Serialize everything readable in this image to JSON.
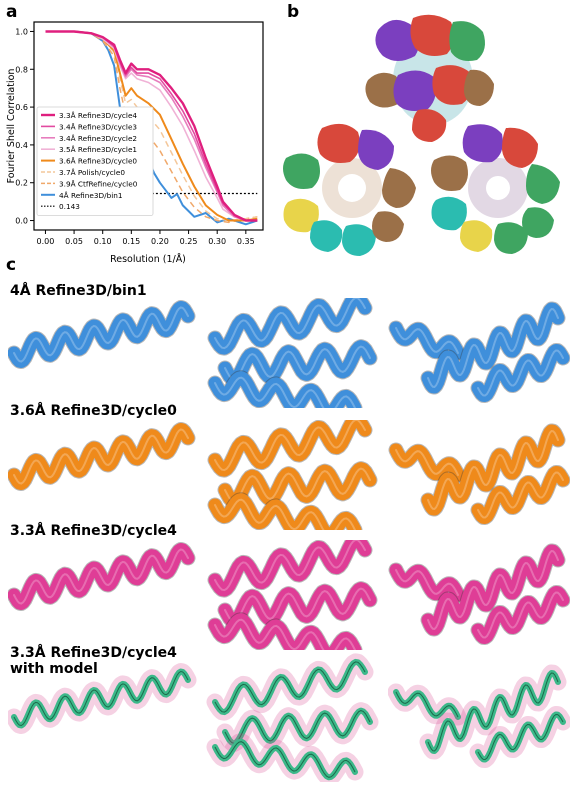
{
  "panels": {
    "a": "a",
    "b": "b",
    "c": "c"
  },
  "colors": {
    "blue": "#3f8fdb",
    "orange": "#ef8a1b",
    "pink": "#df3d96",
    "green": "#2db32d",
    "model": "#3cb88a"
  },
  "chart_data": {
    "type": "line",
    "xlabel": "Resolution (1/Å)",
    "ylabel": "Fourier Shell Correlation",
    "xlim": [
      -0.02,
      0.38
    ],
    "ylim": [
      -0.05,
      1.05
    ],
    "xticks": [
      "0.00",
      "0.05",
      "0.10",
      "0.15",
      "0.20",
      "0.25",
      "0.30",
      "0.35"
    ],
    "yticks": [
      "0.0",
      "0.2",
      "0.4",
      "0.6",
      "0.8",
      "1.0"
    ],
    "legend_position": "bottom-left",
    "series": [
      {
        "name": "3.3Å Refine3D/cycle4",
        "color": "#df1f7e",
        "width": 2.4,
        "dash": "",
        "x": [
          0,
          0.05,
          0.08,
          0.1,
          0.12,
          0.13,
          0.14,
          0.15,
          0.16,
          0.18,
          0.2,
          0.22,
          0.24,
          0.26,
          0.28,
          0.3,
          0.31,
          0.33,
          0.35,
          0.37
        ],
        "y": [
          1.0,
          1.0,
          0.99,
          0.97,
          0.93,
          0.85,
          0.78,
          0.83,
          0.8,
          0.8,
          0.77,
          0.7,
          0.62,
          0.5,
          0.33,
          0.18,
          0.1,
          0.03,
          0.0,
          0.0
        ]
      },
      {
        "name": "3.4Å Refine3D/cycle3",
        "color": "#e24aa0",
        "width": 1.6,
        "dash": "",
        "x": [
          0,
          0.05,
          0.08,
          0.1,
          0.12,
          0.13,
          0.14,
          0.15,
          0.16,
          0.18,
          0.2,
          0.22,
          0.24,
          0.26,
          0.28,
          0.3,
          0.31,
          0.33,
          0.35,
          0.37
        ],
        "y": [
          1.0,
          1.0,
          0.99,
          0.97,
          0.92,
          0.84,
          0.77,
          0.81,
          0.78,
          0.78,
          0.75,
          0.67,
          0.58,
          0.46,
          0.3,
          0.16,
          0.09,
          0.03,
          0.0,
          0.0
        ]
      },
      {
        "name": "3.4Å Refine3D/cycle2",
        "color": "#e77dbd",
        "width": 1.6,
        "dash": "",
        "x": [
          0,
          0.05,
          0.08,
          0.1,
          0.12,
          0.13,
          0.14,
          0.15,
          0.16,
          0.18,
          0.2,
          0.22,
          0.24,
          0.26,
          0.28,
          0.3,
          0.31,
          0.33,
          0.35,
          0.37
        ],
        "y": [
          1.0,
          1.0,
          0.99,
          0.97,
          0.92,
          0.83,
          0.76,
          0.8,
          0.77,
          0.76,
          0.73,
          0.65,
          0.55,
          0.43,
          0.28,
          0.15,
          0.08,
          0.02,
          0.0,
          0.0
        ]
      },
      {
        "name": "3.5Å Refine3D/cycle1",
        "color": "#f0b2d6",
        "width": 1.6,
        "dash": "",
        "x": [
          0,
          0.05,
          0.08,
          0.1,
          0.12,
          0.13,
          0.14,
          0.15,
          0.16,
          0.18,
          0.2,
          0.22,
          0.24,
          0.26,
          0.28,
          0.3,
          0.31,
          0.33,
          0.35,
          0.37
        ],
        "y": [
          1.0,
          1.0,
          0.99,
          0.96,
          0.91,
          0.82,
          0.75,
          0.78,
          0.75,
          0.73,
          0.69,
          0.6,
          0.5,
          0.37,
          0.23,
          0.12,
          0.06,
          0.02,
          0.0,
          0.0
        ]
      },
      {
        "name": "3.6Å Refine3D/cycle0",
        "color": "#ef8a1b",
        "width": 2.0,
        "dash": "",
        "x": [
          0,
          0.05,
          0.08,
          0.1,
          0.12,
          0.13,
          0.14,
          0.15,
          0.16,
          0.18,
          0.2,
          0.22,
          0.24,
          0.26,
          0.28,
          0.3,
          0.32,
          0.35,
          0.37
        ],
        "y": [
          1.0,
          1.0,
          0.99,
          0.96,
          0.9,
          0.78,
          0.66,
          0.7,
          0.66,
          0.62,
          0.56,
          0.43,
          0.3,
          0.18,
          0.08,
          0.03,
          0.0,
          0.0,
          0.01
        ]
      },
      {
        "name": "3.7Å Polish/cycle0",
        "color": "#f4c79a",
        "width": 1.5,
        "dash": "6,4",
        "x": [
          0,
          0.05,
          0.08,
          0.1,
          0.12,
          0.13,
          0.14,
          0.15,
          0.16,
          0.18,
          0.2,
          0.22,
          0.24,
          0.26,
          0.28,
          0.3,
          0.32,
          0.35,
          0.37
        ],
        "y": [
          1.0,
          1.0,
          0.99,
          0.96,
          0.89,
          0.75,
          0.62,
          0.64,
          0.6,
          0.55,
          0.48,
          0.36,
          0.24,
          0.13,
          0.05,
          0.01,
          0.0,
          0.01,
          0.02
        ]
      },
      {
        "name": "3.9Å CtfRefine/cycle0",
        "color": "#f0a86a",
        "width": 1.5,
        "dash": "6,4",
        "x": [
          0,
          0.05,
          0.08,
          0.1,
          0.12,
          0.13,
          0.14,
          0.15,
          0.16,
          0.18,
          0.2,
          0.22,
          0.24,
          0.26,
          0.28,
          0.3,
          0.32,
          0.35,
          0.37
        ],
        "y": [
          1.0,
          1.0,
          0.99,
          0.95,
          0.87,
          0.7,
          0.56,
          0.56,
          0.52,
          0.45,
          0.37,
          0.26,
          0.15,
          0.07,
          0.02,
          0.0,
          -0.01,
          0.01,
          0.02
        ]
      },
      {
        "name": "4Å Refine3D/bin1",
        "color": "#3f8fdb",
        "width": 2.0,
        "dash": "",
        "x": [
          0,
          0.05,
          0.08,
          0.1,
          0.11,
          0.12,
          0.13,
          0.14,
          0.15,
          0.16,
          0.17,
          0.18,
          0.19,
          0.2,
          0.21,
          0.22,
          0.23,
          0.24,
          0.25,
          0.26,
          0.28,
          0.3,
          0.32,
          0.35,
          0.37
        ],
        "y": [
          1.0,
          1.0,
          0.99,
          0.95,
          0.9,
          0.82,
          0.6,
          0.5,
          0.48,
          0.45,
          0.38,
          0.32,
          0.25,
          0.2,
          0.16,
          0.12,
          0.14,
          0.08,
          0.05,
          0.02,
          0.04,
          -0.01,
          0.01,
          -0.02,
          0.0
        ]
      },
      {
        "name": "0.143",
        "color": "#000000",
        "width": 1.2,
        "dash": "2,2",
        "x": [
          0.13,
          0.37
        ],
        "y": [
          0.143,
          0.143
        ]
      }
    ]
  },
  "rows": [
    {
      "label": "4Å Refine3D/bin1",
      "label2": "",
      "color": "#3f8fdb"
    },
    {
      "label": "3.6Å Refine3D/cycle0",
      "label2": "",
      "color": "#ef8a1b"
    },
    {
      "label": "3.3Å Refine3D/cycle4",
      "label2": "",
      "color": "#df3d96"
    },
    {
      "label": "3.3Å Refine3D/cycle4",
      "label2": "with model",
      "color": "#2db32d"
    }
  ]
}
